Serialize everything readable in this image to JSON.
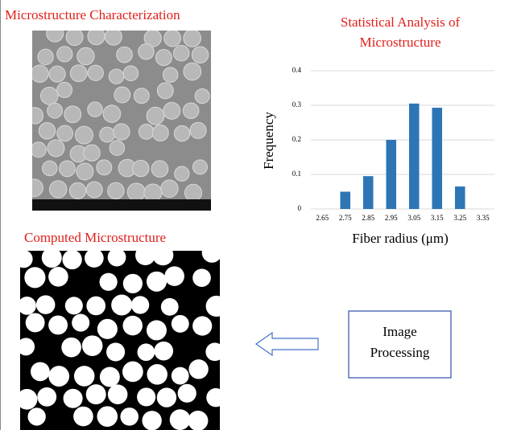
{
  "left_panel": {
    "title": "Microstructure Characterization"
  },
  "chart_data": {
    "type": "bar",
    "title": [
      "Statistical Analysis of",
      "Microstructure"
    ],
    "xlabel": "Fiber radius (μm)",
    "ylabel": "Frequency",
    "categories": [
      "2.65",
      "2.75",
      "2.85",
      "2.95",
      "3.05",
      "3.15",
      "3.25",
      "3.35"
    ],
    "values": [
      0,
      0.05,
      0.095,
      0.2,
      0.305,
      0.293,
      0.065,
      0
    ],
    "color": "#2e75b6",
    "ylim": [
      0,
      0.4
    ],
    "yticks": [
      0,
      0.1,
      0.2,
      0.3,
      0.4
    ],
    "grid": true
  },
  "computed_panel": {
    "title": "Computed Microstructure"
  },
  "process_box": {
    "label": [
      "Image",
      "Processing"
    ]
  }
}
